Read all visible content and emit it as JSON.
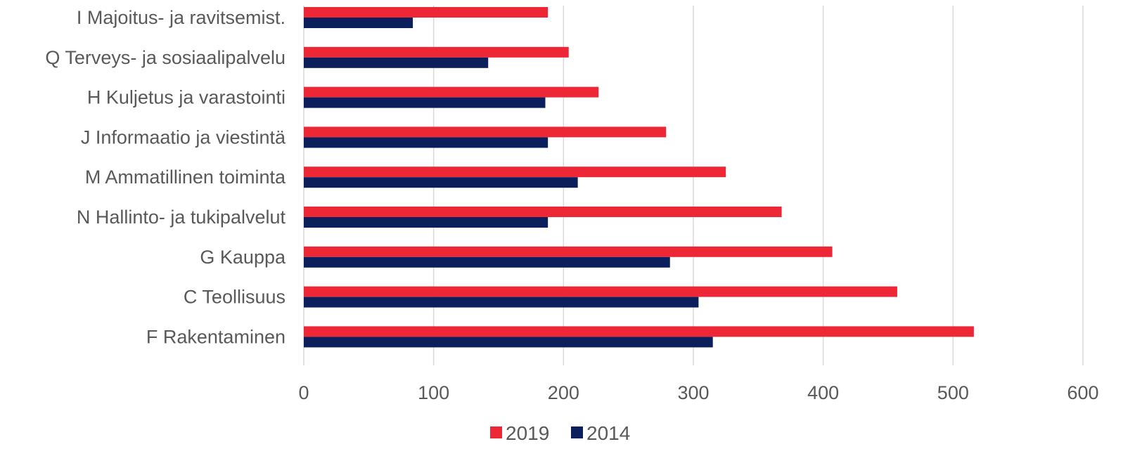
{
  "chart_data": {
    "type": "bar",
    "orientation": "horizontal",
    "title": "",
    "xlabel": "",
    "ylabel": "",
    "categories": [
      "I Majoitus- ja ravitsemist.",
      "Q Terveys- ja sosiaalipalvelu",
      "H Kuljetus ja varastointi",
      "J Informaatio ja viestintä",
      "M Ammatillinen toiminta",
      "N Hallinto- ja tukipalvelut",
      "G Kauppa",
      "C Teollisuus",
      "F Rakentaminen"
    ],
    "series": [
      {
        "name": "2019",
        "color": "#EE2737",
        "values": [
          188,
          204,
          227,
          279,
          325,
          368,
          407,
          457,
          516
        ]
      },
      {
        "name": "2014",
        "color": "#0B1F5C",
        "values": [
          84,
          142,
          186,
          188,
          211,
          188,
          282,
          304,
          315
        ]
      }
    ],
    "xlim": [
      0,
      600
    ],
    "xticks": [
      "0",
      "100",
      "200",
      "300",
      "400",
      "500",
      "600"
    ],
    "grid": true,
    "legend": "bottom"
  }
}
